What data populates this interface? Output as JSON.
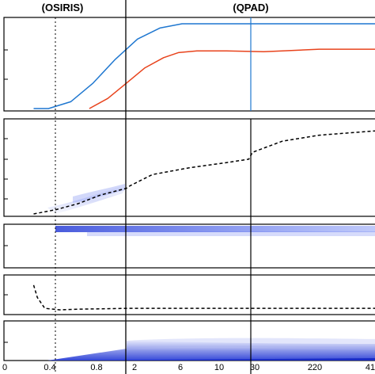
{
  "chart_data": {
    "type": "line",
    "section_labels": {
      "left": "(OSIRIS)",
      "right": "(QPAD)"
    },
    "x_ticks": {
      "osiris": [
        "0",
        "0.4",
        "0.8"
      ],
      "qpad_a": [
        "2",
        "6",
        "10"
      ],
      "qpad_b": [
        "30",
        "220",
        "41"
      ]
    },
    "colors": {
      "series_blue": "#1f77d0",
      "series_red": "#e8431c",
      "dashed": "#000000",
      "density": "#2a3fd6",
      "marker_line": "#1f77d0"
    },
    "panels": [
      {
        "id": "panel-1",
        "series": [
          {
            "color": "blue",
            "x": [
              0.08,
              0.12,
              0.18,
              0.24,
              0.3,
              0.36,
              0.42,
              0.48,
              0.52,
              1.0
            ],
            "y": [
              0.0,
              0.0,
              0.08,
              0.3,
              0.58,
              0.82,
              0.95,
              1.0,
              1.0,
              1.0
            ]
          },
          {
            "color": "red",
            "x": [
              0.23,
              0.28,
              0.33,
              0.38,
              0.43,
              0.47,
              0.52,
              0.6,
              0.7,
              0.75,
              0.85,
              1.0
            ],
            "y": [
              0.0,
              0.12,
              0.3,
              0.48,
              0.6,
              0.66,
              0.68,
              0.68,
              0.67,
              0.68,
              0.7,
              0.7
            ]
          }
        ]
      },
      {
        "id": "panel-2",
        "series": [
          {
            "style": "dashed",
            "x": [
              0.08,
              0.14,
              0.2,
              0.26,
              0.33,
              0.34,
              0.4,
              0.5,
              0.6,
              0.66,
              0.67,
              0.75,
              0.85,
              1.0
            ],
            "y": [
              0.0,
              0.05,
              0.12,
              0.22,
              0.3,
              0.33,
              0.46,
              0.54,
              0.6,
              0.64,
              0.72,
              0.85,
              0.92,
              0.97
            ]
          }
        ]
      },
      {
        "id": "panel-3",
        "series": []
      },
      {
        "id": "panel-4",
        "series": [
          {
            "style": "dashed",
            "x": [
              0.08,
              0.09,
              0.11,
              0.15,
              0.2,
              0.34,
              1.0
            ],
            "y": [
              0.8,
              0.4,
              0.05,
              0.0,
              0.02,
              0.05,
              0.05
            ]
          }
        ]
      },
      {
        "id": "panel-5",
        "series": []
      }
    ]
  }
}
